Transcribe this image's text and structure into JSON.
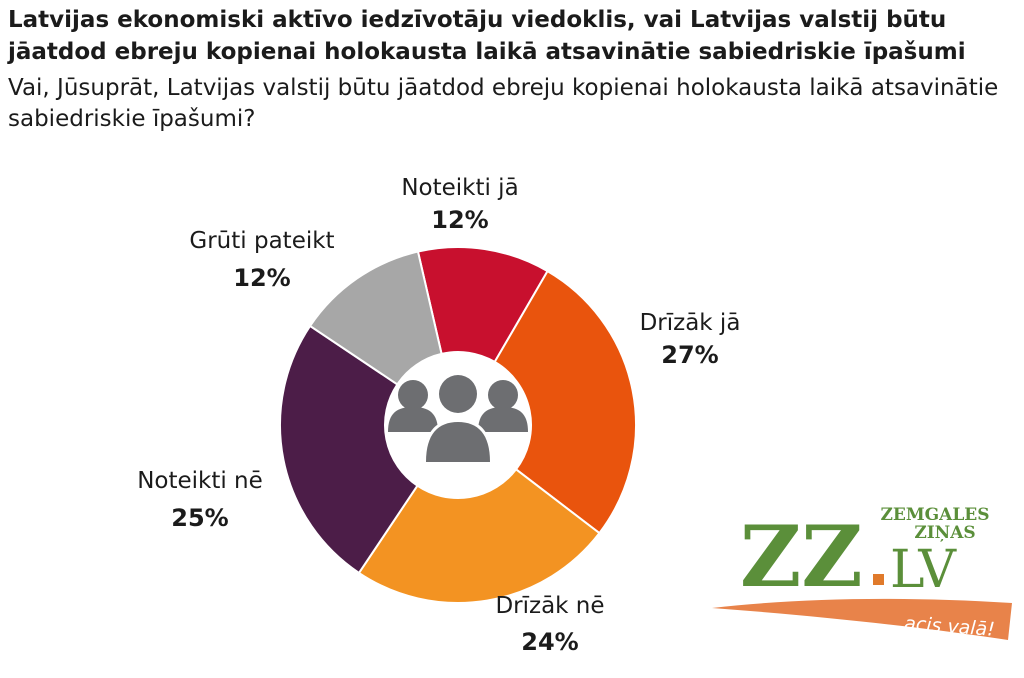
{
  "title": "Latvijas ekonomiski aktīvo iedzīvotāju viedoklis, vai Latvijas valstij būtu jāatdod ebreju kopienai holokausta laikā atsavinātie sabiedriskie īpašumi",
  "subtitle": "Vai, Jūsuprāt, Latvijas valstij būtu jāatdod ebreju kopienai holokausta laikā atsavinātie sabiedriskie īpašumi?",
  "chart_data": {
    "type": "pie",
    "donut": true,
    "start_angle_deg": -13,
    "direction": "clockwise",
    "center_icon": "people-group-icon",
    "slices": [
      {
        "label": "Noteikti jā",
        "value": 12,
        "display": "12%",
        "color": "#c8102e"
      },
      {
        "label": "Drīzāk jā",
        "value": 27,
        "display": "27%",
        "color": "#e9540d"
      },
      {
        "label": "Drīzāk nē",
        "value": 24,
        "display": "24%",
        "color": "#f39322"
      },
      {
        "label": "Noteikti nē",
        "value": 25,
        "display": "25%",
        "color": "#4c1d48"
      },
      {
        "label": "Grūti pateikt",
        "value": 12,
        "display": "12%",
        "color": "#a7a7a7"
      }
    ]
  },
  "logo": {
    "main": "ZZ",
    "domain": "LV",
    "brand_top": "ZEMGALES",
    "brand_bottom": "ZIŅAS",
    "slogan": "acis vaļā!",
    "color": "#5b8f3a",
    "accent": "#e07a2b"
  }
}
